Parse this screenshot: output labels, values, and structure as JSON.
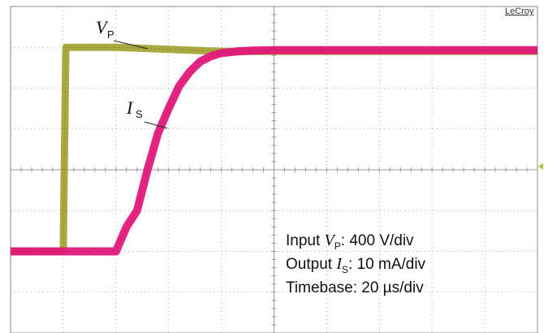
{
  "brand": "LeCroy",
  "chart_data": {
    "type": "line",
    "x_unit": "µs",
    "time_per_div": 20,
    "divisions_x": 10,
    "divisions_y": 8,
    "grid": true,
    "series": [
      {
        "name": "VP",
        "color": "#9b9b1e",
        "x": [
          -20,
          0,
          1,
          20,
          40,
          60,
          180
        ],
        "y_div": [
          -2.0,
          -2.0,
          3.0,
          3.0,
          2.95,
          2.9,
          2.9
        ]
      },
      {
        "name": "IS",
        "color": "#e3187a",
        "x": [
          -20,
          20,
          24,
          28,
          32,
          36,
          40,
          44,
          48,
          52,
          56,
          60,
          66,
          72,
          80,
          90,
          100,
          180
        ],
        "y_div": [
          -2.0,
          -2.0,
          -1.4,
          -1.0,
          0.0,
          0.9,
          1.5,
          2.05,
          2.4,
          2.65,
          2.78,
          2.86,
          2.9,
          2.92,
          2.93,
          2.93,
          2.93,
          2.93
        ]
      }
    ],
    "annotations": {
      "vp_symbol": "V",
      "vp_sub": "P",
      "is_symbol": "I",
      "is_sub": "S"
    }
  },
  "info": {
    "line1_prefix": "Input ",
    "line1_symbol": "V",
    "line1_sub": "P",
    "line1_suffix": ": 400 V/div",
    "line2_prefix": "Output ",
    "line2_symbol": "I",
    "line2_sub": "S",
    "line2_suffix": ": 10 mA/div",
    "line3": "Timebase: 20 µs/div"
  },
  "colors": {
    "grid": "#9a9a9a",
    "frame": "#8a8a8a",
    "vp": "#9b9b1e",
    "is": "#e3187a",
    "marker": "#b8b84a"
  }
}
